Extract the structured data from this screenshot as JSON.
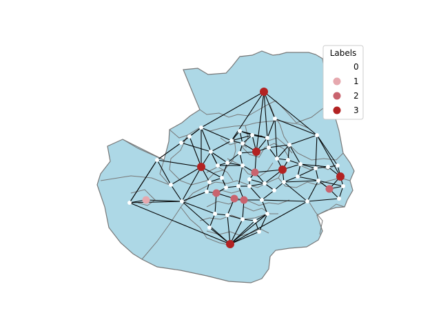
{
  "legend": {
    "title": "Labels",
    "items": [
      {
        "label": "0",
        "color": "#ffffff"
      },
      {
        "label": "1",
        "color": "#e6a8ae"
      },
      {
        "label": "2",
        "color": "#c9636e"
      },
      {
        "label": "3",
        "color": "#b22222"
      }
    ]
  },
  "map_colors": {
    "region_fill": "#add8e6",
    "region_border": "#777777",
    "edge": "#000000"
  }
}
